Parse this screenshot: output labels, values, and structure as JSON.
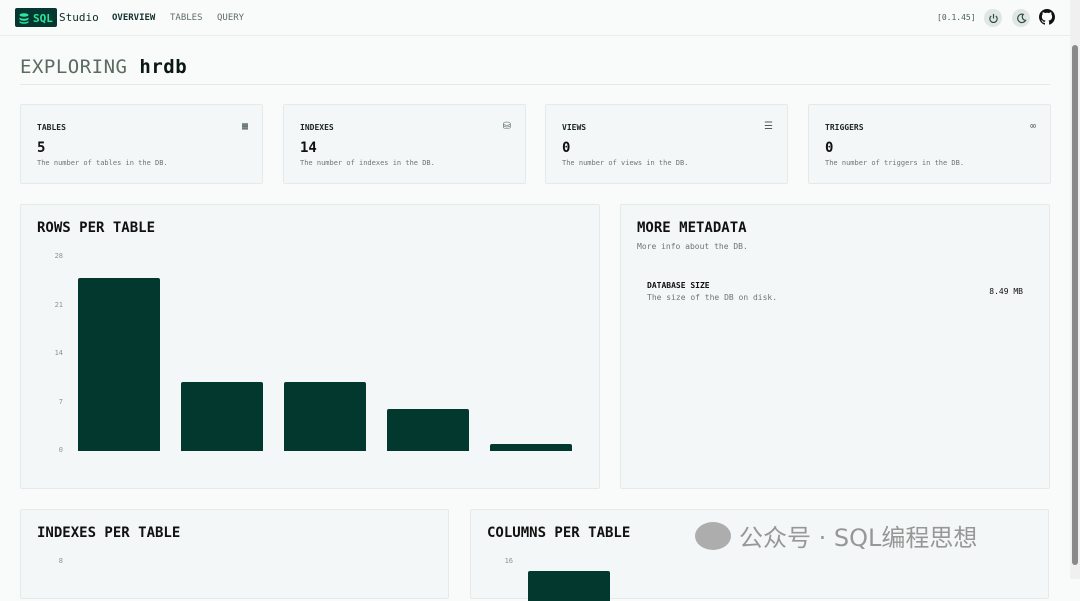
{
  "header": {
    "logo_text": "SQL",
    "app_name": "Studio",
    "nav": [
      "OVERVIEW",
      "TABLES",
      "QUERY"
    ],
    "active_nav": "OVERVIEW",
    "version": "[0.1.45]",
    "icons": [
      "power-icon",
      "moon-icon",
      "github-icon"
    ]
  },
  "page": {
    "title_prefix": "EXPLORING",
    "db_name": "hrdb"
  },
  "stats": [
    {
      "label": "TABLES",
      "value": "5",
      "desc": "The number of tables in the DB.",
      "icon": "table-icon"
    },
    {
      "label": "INDEXES",
      "value": "14",
      "desc": "The number of indexes in the DB.",
      "icon": "database-icon"
    },
    {
      "label": "VIEWS",
      "value": "0",
      "desc": "The number of views in the DB.",
      "icon": "search-list-icon"
    },
    {
      "label": "TRIGGERS",
      "value": "0",
      "desc": "The number of triggers in the DB.",
      "icon": "link-icon"
    }
  ],
  "metadata": {
    "title": "MORE METADATA",
    "subtitle": "More info about the DB.",
    "items": [
      {
        "label": "DATABASE SIZE",
        "desc": "The size of the DB on disk.",
        "value": "8.49 MB"
      }
    ]
  },
  "colors": {
    "accent": "#03382f",
    "logo_text": "#2ee59d"
  },
  "chart_data": [
    {
      "type": "bar",
      "title": "ROWS PER TABLE",
      "yticks": [
        "0",
        "7",
        "14",
        "21",
        "28"
      ],
      "ylim": [
        0,
        28
      ],
      "values": [
        25,
        10,
        10,
        6,
        1
      ],
      "grid": false
    },
    {
      "type": "bar",
      "title": "INDEXES PER TABLE",
      "yticks": [
        "8"
      ]
    },
    {
      "type": "bar",
      "title": "COLUMNS PER TABLE",
      "yticks": [
        "16"
      ]
    }
  ],
  "watermark": "公众号 · SQL编程思想"
}
